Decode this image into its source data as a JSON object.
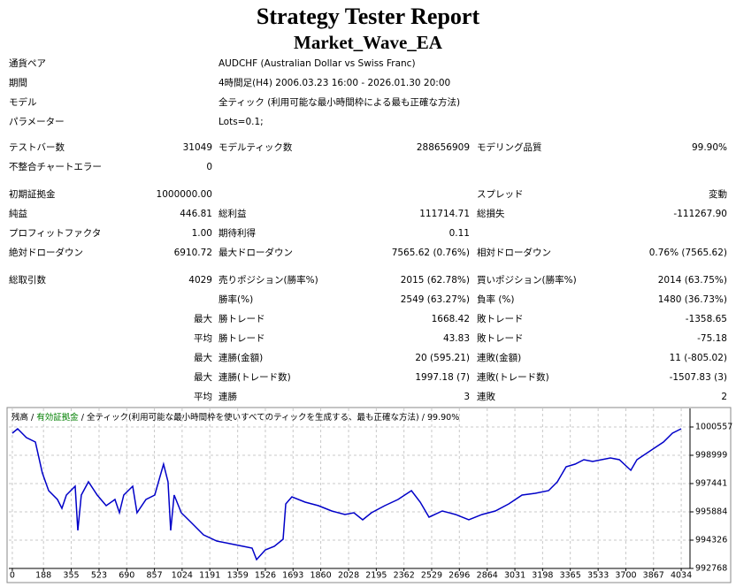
{
  "header": {
    "title": "Strategy Tester Report",
    "subtitle": "Market_Wave_EA"
  },
  "info": [
    [
      "通貨ペア",
      "AUDCHF (Australian Dollar vs Swiss Franc)"
    ],
    [
      "期間",
      "4時間足(H4) 2006.03.23 16:00 - 2026.01.30 20:00"
    ],
    [
      "モデル",
      "全ティック (利用可能な最小時間枠による最も正確な方法)"
    ],
    [
      "パラメーター",
      "Lots=0.1;"
    ]
  ],
  "stats": [
    [
      "テストバー数",
      "31049",
      "モデルティック数",
      "288656909",
      "モデリング品質",
      "99.90%"
    ],
    [
      "不整合チャートエラー",
      "0",
      null,
      null,
      null,
      null
    ],
    [
      "初期証拠金",
      "1000000.00",
      null,
      null,
      "スプレッド",
      "変動"
    ],
    [
      "純益",
      "446.81",
      "総利益",
      "111714.71",
      "総損失",
      "-111267.90"
    ],
    [
      "プロフィットファクタ",
      "1.00",
      "期待利得",
      "0.11",
      null,
      null
    ],
    [
      "絶対ドローダウン",
      "6910.72",
      "最大ドローダウン",
      "7565.62 (0.76%)",
      "相対ドローダウン",
      "0.76% (7565.62)"
    ],
    [
      "総取引数",
      "4029",
      "売りポジション(勝率%)",
      "2015 (62.78%)",
      "買いポジション(勝率%)",
      "2014 (63.75%)"
    ],
    [
      null,
      null,
      "勝率(%)",
      "2549 (63.27%)",
      "負率 (%)",
      "1480 (36.73%)"
    ],
    [
      null,
      "最大",
      "勝トレード",
      "1668.42",
      "敗トレード",
      "-1358.65"
    ],
    [
      null,
      "平均",
      "勝トレード",
      "43.83",
      "敗トレード",
      "-75.18"
    ],
    [
      null,
      "最大",
      "連勝(金額)",
      "20 (595.21)",
      "連敗(金額)",
      "11 (-805.02)"
    ],
    [
      null,
      "最大",
      "連勝(トレード数)",
      "1997.18 (7)",
      "連敗(トレード数)",
      "-1507.83 (3)"
    ],
    [
      null,
      "平均",
      "連勝",
      "3",
      "連敗",
      "2"
    ]
  ],
  "chart_data": {
    "type": "line",
    "legend": [
      {
        "text": "残高",
        "color": "#000000"
      },
      {
        "text": "有効証拠金",
        "color": "#008000"
      },
      {
        "text": "全ティック(利用可能な最小時間枠を使いすべてのティックを生成する、最も正確な方法)",
        "color": "#000000"
      },
      {
        "text": "99.90%",
        "color": "#000000"
      }
    ],
    "x": [
      0,
      32,
      85,
      139,
      181,
      219,
      272,
      299,
      326,
      379,
      395,
      416,
      459,
      512,
      566,
      619,
      646,
      672,
      726,
      752,
      806,
      859,
      912,
      939,
      955,
      976,
      1019,
      1073,
      1153,
      1233,
      1313,
      1393,
      1446,
      1473,
      1526,
      1580,
      1633,
      1649,
      1686,
      1766,
      1846,
      1926,
      2006,
      2060,
      2113,
      2166,
      2246,
      2326,
      2407,
      2460,
      2513,
      2593,
      2673,
      2753,
      2833,
      2913,
      2994,
      3074,
      3154,
      3234,
      3287,
      3340,
      3394,
      3447,
      3500,
      3607,
      3661,
      3730,
      3767,
      3847,
      3927,
      3981,
      4034
    ],
    "series": [
      {
        "name": "残高",
        "color": "#0000c8",
        "values": [
          1000216,
          1000460,
          999973,
          999729,
          998026,
          997052,
          996565,
          996078,
          996809,
          997295,
          994861,
          996809,
          997539,
          996809,
          996224,
          996565,
          995835,
          996809,
          997295,
          995835,
          996565,
          996809,
          998512,
          997539,
          994861,
          996809,
          995835,
          995348,
          994618,
          994277,
          994131,
          993985,
          993888,
          993255,
          993790,
          993985,
          994375,
          996322,
          996711,
          996419,
          996224,
          995932,
          995738,
          995835,
          995446,
          995835,
          996224,
          996565,
          997052,
          996419,
          995592,
          995932,
          995738,
          995446,
          995738,
          995932,
          996322,
          996809,
          996906,
          997052,
          997539,
          998366,
          998512,
          998756,
          998658,
          998853,
          998756,
          998172,
          998756,
          999243,
          999729,
          1000216,
          1000460
        ]
      }
    ],
    "xlim": [
      -21,
      4087
    ],
    "ylim": [
      992768,
      1001579
    ],
    "xticks": [
      0,
      188,
      355,
      523,
      690,
      857,
      1024,
      1191,
      1359,
      1526,
      1693,
      1860,
      2028,
      2195,
      2362,
      2529,
      2696,
      2864,
      3031,
      3198,
      3365,
      3533,
      3700,
      3867,
      4034
    ],
    "yticks": [
      1000557,
      998999,
      997441,
      995884,
      994326,
      992768
    ],
    "grid": true
  }
}
